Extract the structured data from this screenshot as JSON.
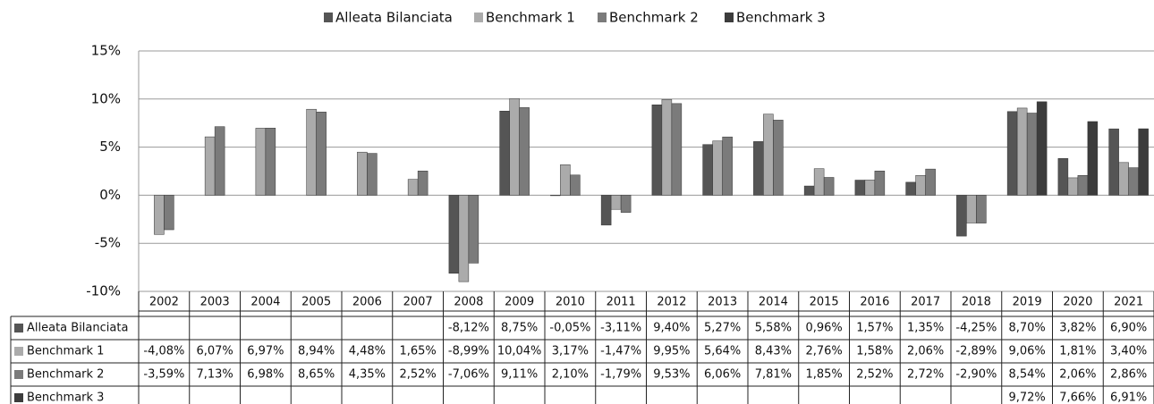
{
  "chart_data": {
    "type": "bar",
    "categories": [
      "2002",
      "2003",
      "2004",
      "2005",
      "2006",
      "2007",
      "2008",
      "2009",
      "2010",
      "2011",
      "2012",
      "2013",
      "2014",
      "2015",
      "2016",
      "2017",
      "2018",
      "2019",
      "2020",
      "2021"
    ],
    "series": [
      {
        "name": "Alleata Bilanciata",
        "color": "#555555",
        "values": [
          null,
          null,
          null,
          null,
          null,
          null,
          -8.12,
          8.75,
          -0.05,
          -3.11,
          9.4,
          5.27,
          5.58,
          0.96,
          1.57,
          1.35,
          -4.25,
          8.7,
          3.82,
          6.9
        ],
        "value_labels": [
          null,
          null,
          null,
          null,
          null,
          null,
          "-8,12%",
          "8,75%",
          "-0,05%",
          "-3,11%",
          "9,40%",
          "5,27%",
          "5,58%",
          "0,96%",
          "1,57%",
          "1,35%",
          "-4,25%",
          "8,70%",
          "3,82%",
          "6,90%"
        ]
      },
      {
        "name": "Benchmark 1",
        "color": "#ababab",
        "values": [
          -4.08,
          6.07,
          6.97,
          8.94,
          4.48,
          1.65,
          -8.99,
          10.04,
          3.17,
          -1.47,
          9.95,
          5.64,
          8.43,
          2.76,
          1.58,
          2.06,
          -2.89,
          9.06,
          1.81,
          3.4
        ],
        "value_labels": [
          "-4,08%",
          "6,07%",
          "6,97%",
          "8,94%",
          "4,48%",
          "1,65%",
          "-8,99%",
          "10,04%",
          "3,17%",
          "-1,47%",
          "9,95%",
          "5,64%",
          "8,43%",
          "2,76%",
          "1,58%",
          "2,06%",
          "-2,89%",
          "9,06%",
          "1,81%",
          "3,40%"
        ]
      },
      {
        "name": "Benchmark 2",
        "color": "#7b7b7b",
        "values": [
          -3.59,
          7.13,
          6.98,
          8.65,
          4.35,
          2.52,
          -7.06,
          9.11,
          2.1,
          -1.79,
          9.53,
          6.06,
          7.81,
          1.85,
          2.52,
          2.72,
          -2.9,
          8.54,
          2.06,
          2.86
        ],
        "value_labels": [
          "-3,59%",
          "7,13%",
          "6,98%",
          "8,65%",
          "4,35%",
          "2,52%",
          "-7,06%",
          "9,11%",
          "2,10%",
          "-1,79%",
          "9,53%",
          "6,06%",
          "7,81%",
          "1,85%",
          "2,52%",
          "2,72%",
          "-2,90%",
          "8,54%",
          "2,06%",
          "2,86%"
        ]
      },
      {
        "name": "Benchmark 3",
        "color": "#3c3c3c",
        "values": [
          null,
          null,
          null,
          null,
          null,
          null,
          null,
          null,
          null,
          null,
          null,
          null,
          null,
          null,
          null,
          null,
          null,
          9.72,
          7.66,
          6.91
        ],
        "value_labels": [
          null,
          null,
          null,
          null,
          null,
          null,
          null,
          null,
          null,
          null,
          null,
          null,
          null,
          null,
          null,
          null,
          null,
          "9,72%",
          "7,66%",
          "6,91%"
        ]
      }
    ],
    "ylim": [
      -10,
      15
    ],
    "yticks": [
      {
        "value": -10,
        "label": "-10%"
      },
      {
        "value": -5,
        "label": "-5%"
      },
      {
        "value": 0,
        "label": "0%"
      },
      {
        "value": 5,
        "label": "5%"
      },
      {
        "value": 10,
        "label": "10%"
      },
      {
        "value": 15,
        "label": "15%"
      }
    ],
    "grid": true,
    "legend": "top"
  }
}
